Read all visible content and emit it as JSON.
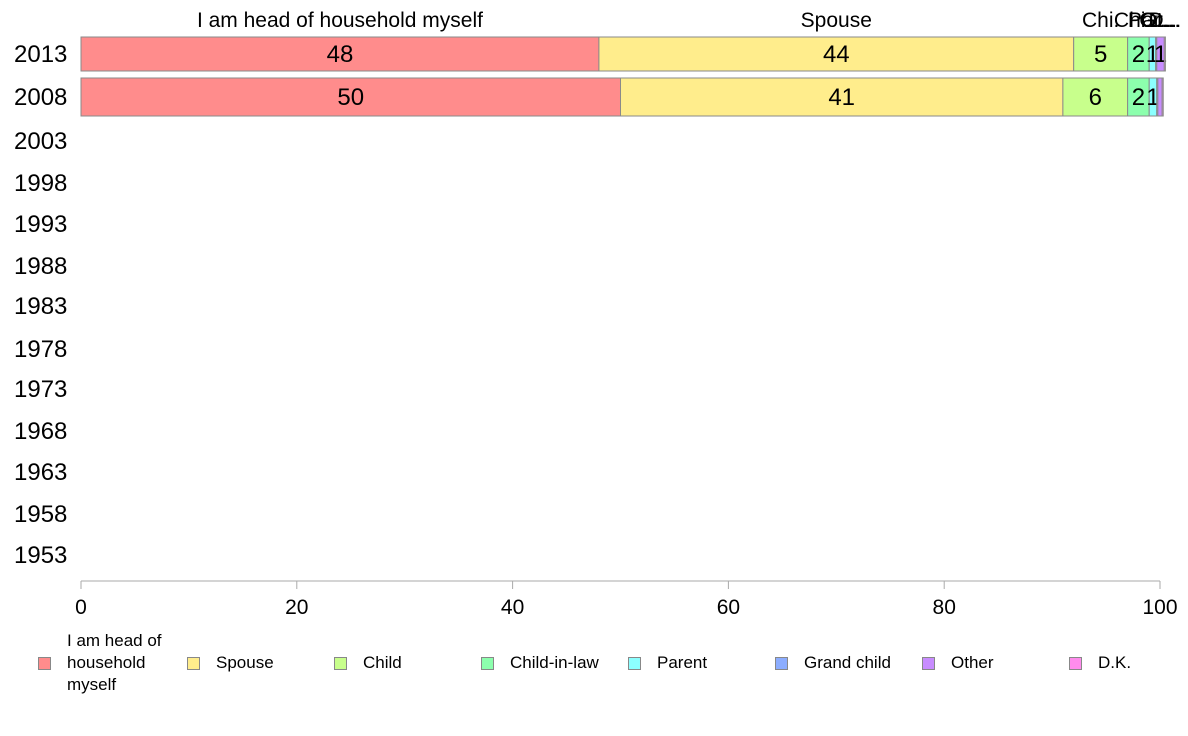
{
  "chart_data": {
    "type": "bar",
    "orientation": "horizontal",
    "stacked": true,
    "years": [
      "2013",
      "2008",
      "2003",
      "1998",
      "1993",
      "1988",
      "1983",
      "1978",
      "1973",
      "1968",
      "1963",
      "1958",
      "1953"
    ],
    "series": [
      {
        "name": "I am head of household myself",
        "color": "#ff8c8c",
        "values": [
          48,
          50,
          null,
          null,
          null,
          null,
          null,
          null,
          null,
          null,
          null,
          null,
          null
        ]
      },
      {
        "name": "Spouse",
        "color": "#ffed8c",
        "values": [
          44,
          41,
          null,
          null,
          null,
          null,
          null,
          null,
          null,
          null,
          null,
          null,
          null
        ]
      },
      {
        "name": "Child",
        "color": "#c8ff8c",
        "values": [
          5,
          6,
          null,
          null,
          null,
          null,
          null,
          null,
          null,
          null,
          null,
          null,
          null
        ]
      },
      {
        "name": "Child-in-law",
        "color": "#8cffad",
        "values": [
          2,
          2,
          null,
          null,
          null,
          null,
          null,
          null,
          null,
          null,
          null,
          null,
          null
        ]
      },
      {
        "name": "Parent",
        "color": "#8cffff",
        "values": [
          0.6,
          0.7,
          null,
          null,
          null,
          null,
          null,
          null,
          null,
          null,
          null,
          null,
          null
        ]
      },
      {
        "name": "Grand child",
        "color": "#8cadff",
        "values": [
          0.1,
          0.1,
          null,
          null,
          null,
          null,
          null,
          null,
          null,
          null,
          null,
          null,
          null
        ]
      },
      {
        "name": "Other",
        "color": "#c88cff",
        "values": [
          0.7,
          0.4,
          null,
          null,
          null,
          null,
          null,
          null,
          null,
          null,
          null,
          null,
          null
        ]
      },
      {
        "name": "D.K.",
        "color": "#ff8ced",
        "values": [
          0.1,
          0.1,
          null,
          null,
          null,
          null,
          null,
          null,
          null,
          null,
          null,
          null,
          null
        ]
      }
    ],
    "segment_labels": [
      [
        "48",
        "44",
        "5",
        "2",
        "1",
        "",
        "1",
        ""
      ],
      [
        "50",
        "41",
        "6",
        "2",
        "1",
        "",
        "",
        ""
      ]
    ],
    "top_labels": [
      "I am head of household myself",
      "Spouse",
      "Chi.",
      "Chi...",
      "Par...",
      "G...",
      "Ot...",
      "D..."
    ],
    "xlim": [
      0,
      100
    ],
    "xticks": [
      "0",
      "20",
      "40",
      "60",
      "80",
      "100"
    ],
    "legend_position": "bottom",
    "legend": [
      "I am head of household myself",
      "Spouse",
      "Child",
      "Child-in-law",
      "Parent",
      "Grand child",
      "Other",
      "D.K."
    ]
  }
}
